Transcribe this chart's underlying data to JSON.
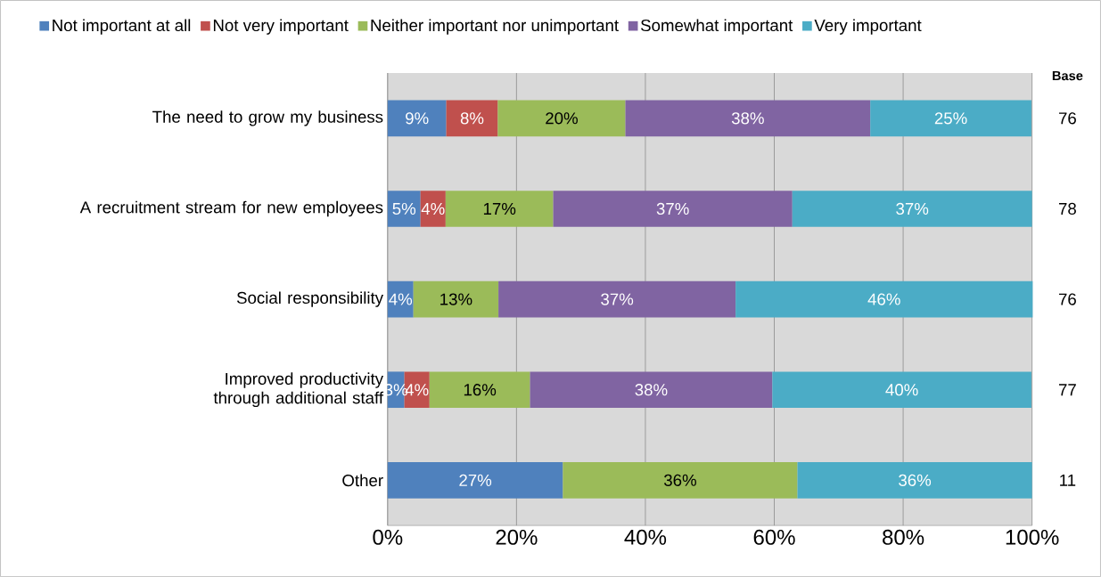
{
  "chart_data": {
    "type": "bar",
    "orientation": "horizontal",
    "stacked": true,
    "categories": [
      "The need to grow my business",
      "A recruitment stream for new employees",
      "Social responsibility",
      "Improved productivity through additional staff",
      "Other"
    ],
    "series": [
      {
        "name": "Not important at all",
        "color": "#4f81bd",
        "values": [
          9.1,
          5.1,
          4.0,
          2.6,
          27.2
        ],
        "value_labels": [
          "9%",
          "5%",
          "4%",
          "3%",
          "27%"
        ]
      },
      {
        "name": "Not very important",
        "color": "#c0504d",
        "values": [
          8.0,
          3.9,
          null,
          3.9,
          null
        ],
        "value_labels": [
          "8%",
          "4%",
          null,
          "4%",
          null
        ]
      },
      {
        "name": "Neither important nor unimportant",
        "color": "#9bbb59",
        "values": [
          19.8,
          16.7,
          13.2,
          15.6,
          36.4
        ],
        "value_labels": [
          "20%",
          "17%",
          "13%",
          "16%",
          "36%"
        ]
      },
      {
        "name": "Somewhat important",
        "color": "#8064a2",
        "values": [
          38.0,
          37.1,
          36.8,
          37.6,
          null
        ],
        "value_labels": [
          "38%",
          "37%",
          "37%",
          "38%",
          null
        ]
      },
      {
        "name": "Very important",
        "color": "#4bacc6",
        "values": [
          25.0,
          37.2,
          46.1,
          40.2,
          36.4
        ],
        "value_labels": [
          "25%",
          "37%",
          "46%",
          "40%",
          "36%"
        ]
      }
    ],
    "xlim": [
      0,
      100
    ],
    "xticks": [
      {
        "value": 0,
        "label": "0%"
      },
      {
        "value": 20,
        "label": "20%"
      },
      {
        "value": 40,
        "label": "40%"
      },
      {
        "value": 60,
        "label": "60%"
      },
      {
        "value": 80,
        "label": "80%"
      },
      {
        "value": 100,
        "label": "100%"
      }
    ],
    "annotations": [
      "Base",
      "76",
      "78",
      "76",
      "77",
      "11"
    ],
    "grid": "x",
    "legend": "top"
  }
}
